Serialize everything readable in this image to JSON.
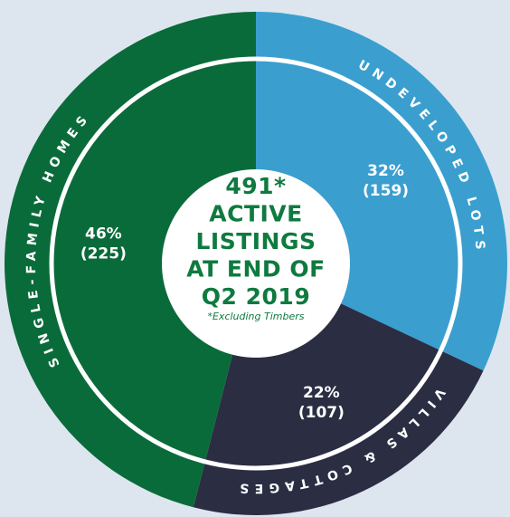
{
  "chart_data": {
    "type": "donut",
    "title": [
      "491*",
      "ACTIVE",
      "LISTINGS",
      "AT END OF",
      "Q2 2019"
    ],
    "subtitle": "*Excluding Timbers",
    "categories": [
      "UNDEVELOPED LOTS",
      "VILLAS & COTTAGES",
      "SINGLE-FAMILY HOMES"
    ],
    "values": [
      32,
      22,
      46
    ],
    "value_labels": [
      "32%",
      "22%",
      "46%"
    ],
    "counts": [
      159,
      107,
      225
    ],
    "count_labels": [
      "(159)",
      "(107)",
      "(225)"
    ],
    "colors": [
      "#3a9fcf",
      "#2b2d43",
      "#0a6b3a"
    ]
  }
}
